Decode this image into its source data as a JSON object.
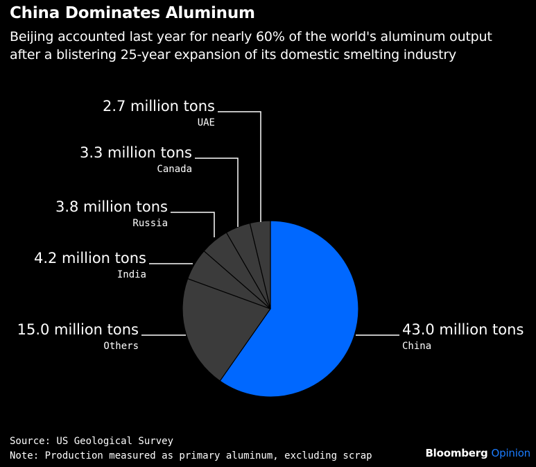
{
  "title": "China Dominates Aluminum",
  "subtitle": "Beijing accounted last year for nearly 60% of the world's aluminum output after a blistering 25-year expansion of its domestic smelting industry",
  "chart_data": {
    "type": "pie",
    "unit": "million tons",
    "slices": [
      {
        "name": "China",
        "value": 43.0,
        "label": "43.0 million tons",
        "color": "#0068ff"
      },
      {
        "name": "Others",
        "value": 15.0,
        "label": "15.0 million tons",
        "color": "#3b3b3b"
      },
      {
        "name": "India",
        "value": 4.2,
        "label": "4.2 million tons",
        "color": "#3b3b3b"
      },
      {
        "name": "Russia",
        "value": 3.8,
        "label": "3.8 million tons",
        "color": "#3b3b3b"
      },
      {
        "name": "Canada",
        "value": 3.3,
        "label": "3.3 million tons",
        "color": "#3b3b3b"
      },
      {
        "name": "UAE",
        "value": 2.7,
        "label": "2.7 million tons",
        "color": "#3b3b3b"
      }
    ]
  },
  "footer": {
    "source": "Source: US Geological Survey",
    "note": "Note: Production measured as primary aluminum, excluding scrap"
  },
  "brand": {
    "name": "Bloomberg",
    "suffix": "Opinion"
  }
}
